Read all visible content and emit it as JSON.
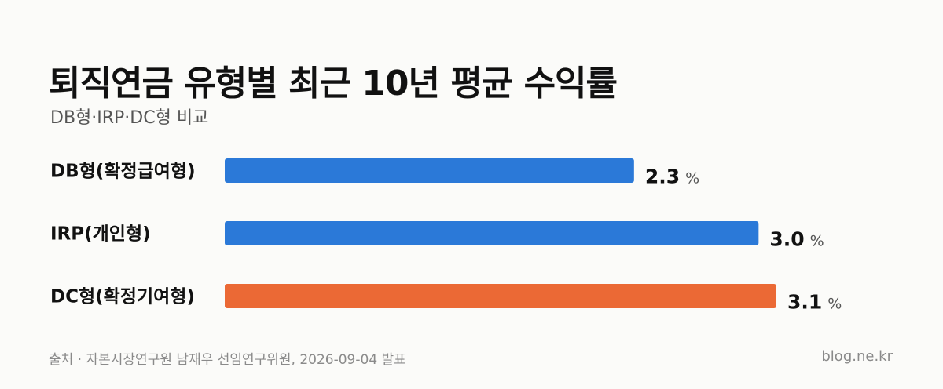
{
  "header": {
    "title": "퇴직연금 유형별 최근 10년 평균 수익률",
    "subtitle": "DB형·IRP·DC형 비교"
  },
  "footer": {
    "source": "출처 · 자본시장연구원 남재우 선임연구위원, 2026-09-04 발표",
    "brand": "blog.ne.kr"
  },
  "colors": {
    "blue": "#2b79d8",
    "orange": "#eb6935"
  },
  "chart_data": {
    "type": "bar",
    "orientation": "horizontal",
    "categories": [
      "DB형(확정급여형)",
      "IRP(개인형)",
      "DC형(확정기여형)"
    ],
    "values": [
      2.3,
      3.0,
      3.1
    ],
    "value_labels": [
      "2.3",
      "3.0",
      "3.1"
    ],
    "unit": "%",
    "bar_colors": [
      "#2b79d8",
      "#2b79d8",
      "#eb6935"
    ],
    "xlim": [
      0,
      3.1
    ],
    "grid": false,
    "legend": "none"
  }
}
